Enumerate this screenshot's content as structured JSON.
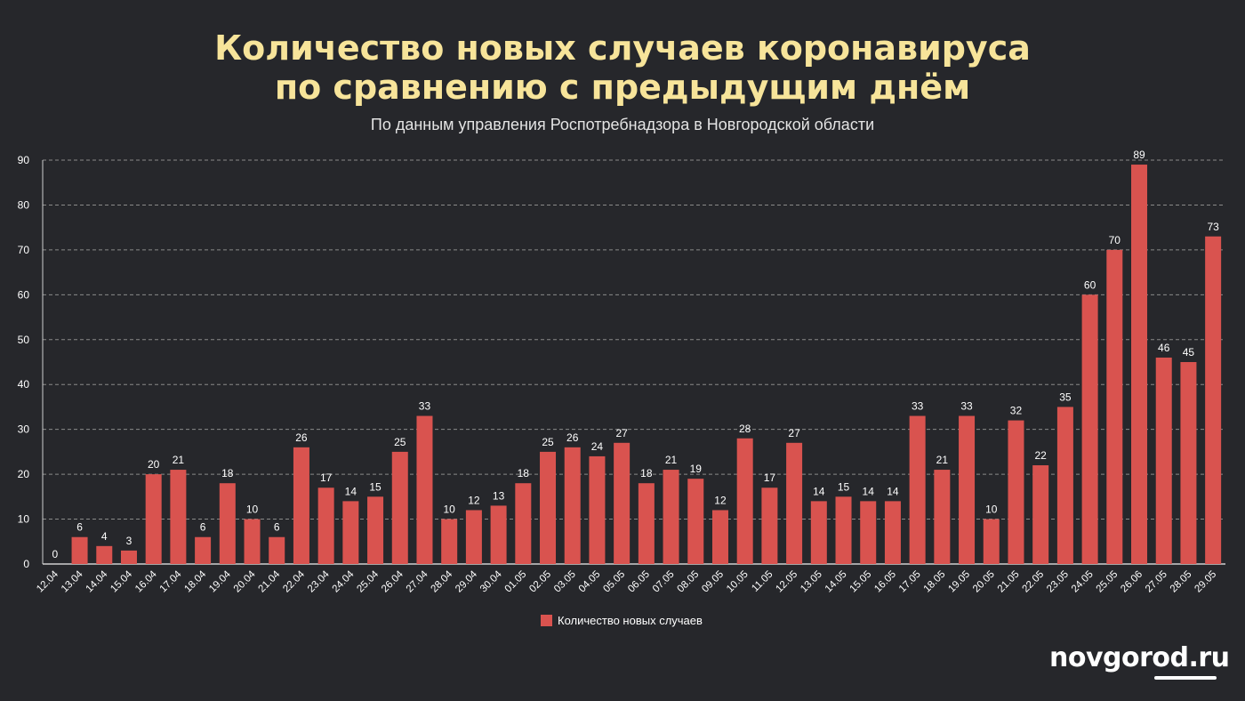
{
  "header": {
    "title_line1": "Количество новых случаев коронавируса",
    "title_line2": "по сравнению с предыдущим днём",
    "subtitle": "По данным управления Роспотребнадзора в Новгородской области"
  },
  "logo": {
    "text": "novgorod.ru"
  },
  "colors": {
    "background": "#26272b",
    "bar": "#d9534f",
    "title": "#f7e49a",
    "grid": "#8a8a8a"
  },
  "chart_data": {
    "type": "bar",
    "title": "Количество новых случаев коронавируса по сравнению с предыдущим днём",
    "subtitle": "По данным управления Роспотребнадзора в Новгородской области",
    "ylim": [
      0,
      90
    ],
    "yticks": [
      0,
      10,
      20,
      30,
      40,
      50,
      60,
      70,
      80,
      90
    ],
    "grid": true,
    "legend": "bottom-center",
    "categories": [
      "12.04",
      "13.04",
      "14.04",
      "15.04",
      "16.04",
      "17.04",
      "18.04",
      "19.04",
      "20.04",
      "21.04",
      "22.04",
      "23.04",
      "24.04",
      "25.04",
      "26.04",
      "27.04",
      "28.04",
      "29.04",
      "30.04",
      "01.05",
      "02.05",
      "03.05",
      "04.05",
      "05.05",
      "06.05",
      "07.05",
      "08.05",
      "09.05",
      "10.05",
      "11.05",
      "12.05",
      "13.05",
      "14.05",
      "15.05",
      "16.05",
      "17.05",
      "18.05",
      "19.05",
      "20.05",
      "21.05",
      "22.05",
      "23.05",
      "24.05",
      "25.05",
      "26.06",
      "27.05",
      "28.05",
      "29.05"
    ],
    "series": [
      {
        "name": "Количество новых случаев",
        "color": "#d9534f",
        "values": [
          0,
          6,
          4,
          3,
          20,
          21,
          6,
          18,
          10,
          6,
          26,
          17,
          14,
          15,
          25,
          33,
          10,
          12,
          13,
          18,
          25,
          26,
          24,
          27,
          18,
          21,
          19,
          12,
          28,
          17,
          27,
          14,
          15,
          14,
          14,
          33,
          21,
          33,
          10,
          32,
          22,
          35,
          60,
          70,
          89,
          46,
          45,
          73
        ]
      }
    ]
  }
}
